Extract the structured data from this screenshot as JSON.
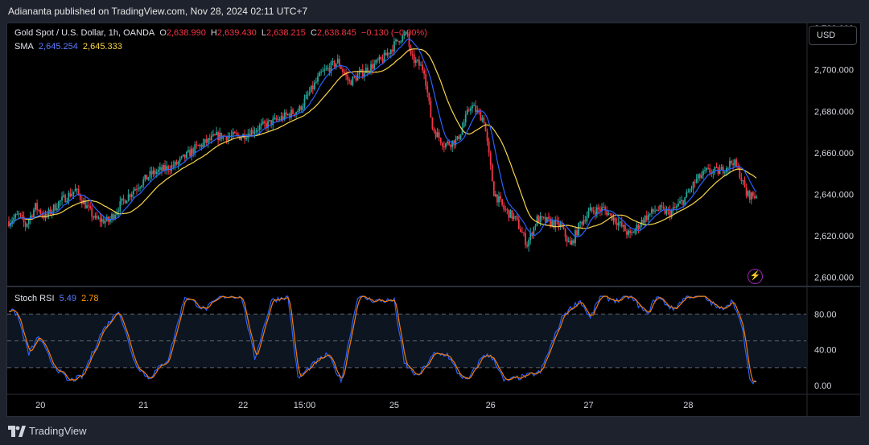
{
  "header": {
    "publisher": "Adiananta published on TradingView.com, Nov 28, 2024 02:11 UTC+7"
  },
  "legend": {
    "symbol": "Gold Spot / U.S. Dollar, 1h, OANDA",
    "o_label": "O",
    "o_value": "2,638.990",
    "h_label": "H",
    "h_value": "2,639.430",
    "l_label": "L",
    "l_value": "2,638.215",
    "c_label": "C",
    "c_value": "2,638.845",
    "change": "−0.130 (−0.00%)",
    "sma_label": "SMA",
    "sma_fast": "2,645.254",
    "sma_slow": "2,645.333"
  },
  "stoch": {
    "label": "Stoch RSI",
    "k_value": "5.49",
    "d_value": "2.78"
  },
  "currency_button": "USD",
  "brand": "TradingView",
  "colors": {
    "up": "#26a69a",
    "down": "#f23645",
    "sma_fast": "#2962ff",
    "sma_slow": "#f7d54a",
    "stoch_k": "#2962ff",
    "stoch_d": "#f57c00",
    "bolt": "#9c27b0"
  },
  "icons": {
    "brand_icon": "tradingview-logo-icon",
    "alert_icon": "lightning-bolt-icon"
  },
  "chart_data": [
    {
      "type": "candlestick",
      "title": "Gold Spot / U.S. Dollar, 1h, OANDA",
      "y_ticks": [
        "2,600.000",
        "2,620.000",
        "2,640.000",
        "2,660.000",
        "2,680.000",
        "2,700.000",
        "2,720.000"
      ],
      "ylim": [
        2596,
        2722
      ],
      "x_ticks": [
        "20",
        "21",
        "22",
        "15:00",
        "25",
        "26",
        "27",
        "28"
      ],
      "waypoints": [
        [
          0,
          2627
        ],
        [
          6,
          2630
        ],
        [
          10,
          2625
        ],
        [
          16,
          2634
        ],
        [
          22,
          2629
        ],
        [
          30,
          2636
        ],
        [
          40,
          2642
        ],
        [
          52,
          2628
        ],
        [
          60,
          2627
        ],
        [
          68,
          2636
        ],
        [
          76,
          2643
        ],
        [
          86,
          2650
        ],
        [
          100,
          2654
        ],
        [
          112,
          2662
        ],
        [
          125,
          2668
        ],
        [
          140,
          2668
        ],
        [
          150,
          2672
        ],
        [
          162,
          2676
        ],
        [
          175,
          2681
        ],
        [
          188,
          2698
        ],
        [
          198,
          2704
        ],
        [
          205,
          2694
        ],
        [
          215,
          2700
        ],
        [
          225,
          2705
        ],
        [
          235,
          2715
        ],
        [
          240,
          2717
        ],
        [
          242,
          2706
        ],
        [
          250,
          2700
        ],
        [
          255,
          2672
        ],
        [
          262,
          2664
        ],
        [
          270,
          2666
        ],
        [
          278,
          2683
        ],
        [
          286,
          2676
        ],
        [
          292,
          2641
        ],
        [
          298,
          2633
        ],
        [
          305,
          2628
        ],
        [
          312,
          2616
        ],
        [
          318,
          2628
        ],
        [
          324,
          2627
        ],
        [
          332,
          2625
        ],
        [
          338,
          2615
        ],
        [
          344,
          2626
        ],
        [
          350,
          2632
        ],
        [
          358,
          2633
        ],
        [
          366,
          2627
        ],
        [
          374,
          2620
        ],
        [
          382,
          2628
        ],
        [
          390,
          2633
        ],
        [
          398,
          2631
        ],
        [
          406,
          2637
        ],
        [
          414,
          2647
        ],
        [
          420,
          2651
        ],
        [
          428,
          2651
        ],
        [
          436,
          2656
        ],
        [
          440,
          2650
        ],
        [
          444,
          2640
        ],
        [
          450,
          2639
        ]
      ],
      "sma_fast_value": 2645.254,
      "sma_slow_value": 2645.333
    },
    {
      "type": "line",
      "title": "Stoch RSI",
      "y_ticks": [
        "0.00",
        "40.00",
        "80.00"
      ],
      "ylim": [
        -8,
        110
      ],
      "bands": [
        20,
        50,
        80
      ],
      "k_waypoints": [
        [
          0,
          85
        ],
        [
          5,
          80
        ],
        [
          12,
          35
        ],
        [
          18,
          55
        ],
        [
          26,
          25
        ],
        [
          36,
          5
        ],
        [
          44,
          10
        ],
        [
          56,
          60
        ],
        [
          66,
          85
        ],
        [
          76,
          25
        ],
        [
          84,
          8
        ],
        [
          96,
          30
        ],
        [
          106,
          100
        ],
        [
          118,
          85
        ],
        [
          128,
          100
        ],
        [
          140,
          100
        ],
        [
          148,
          30
        ],
        [
          158,
          95
        ],
        [
          168,
          100
        ],
        [
          174,
          8
        ],
        [
          184,
          25
        ],
        [
          192,
          35
        ],
        [
          200,
          5
        ],
        [
          210,
          100
        ],
        [
          220,
          95
        ],
        [
          232,
          95
        ],
        [
          238,
          25
        ],
        [
          246,
          10
        ],
        [
          256,
          35
        ],
        [
          264,
          35
        ],
        [
          270,
          15
        ],
        [
          276,
          5
        ],
        [
          286,
          35
        ],
        [
          292,
          30
        ],
        [
          298,
          5
        ],
        [
          310,
          10
        ],
        [
          320,
          15
        ],
        [
          334,
          80
        ],
        [
          344,
          95
        ],
        [
          350,
          75
        ],
        [
          356,
          100
        ],
        [
          366,
          95
        ],
        [
          374,
          100
        ],
        [
          384,
          80
        ],
        [
          390,
          100
        ],
        [
          400,
          85
        ],
        [
          408,
          100
        ],
        [
          418,
          100
        ],
        [
          428,
          85
        ],
        [
          436,
          95
        ],
        [
          442,
          60
        ],
        [
          446,
          5
        ],
        [
          450,
          5
        ]
      ],
      "k_value": 5.49,
      "d_value": 2.78
    }
  ]
}
